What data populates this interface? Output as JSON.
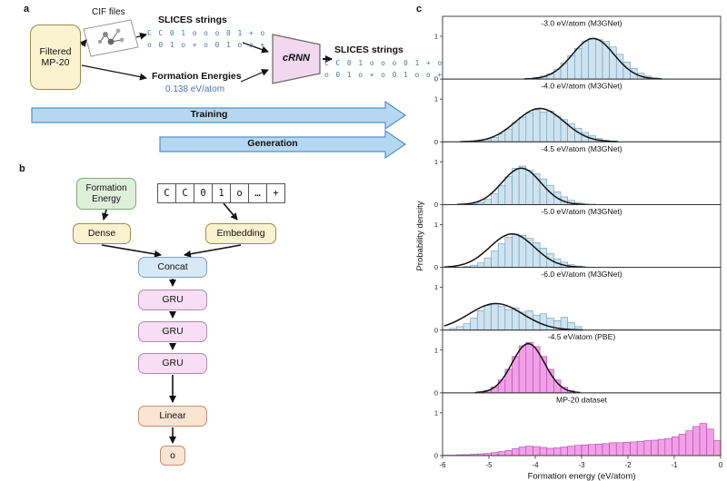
{
  "colors": {
    "hist_blue_fill": "#cfe3ef",
    "hist_blue_edge": "#6699bb",
    "hist_magenta_fill": "#f2a0e6",
    "hist_magenta_edge": "#b040b0",
    "arrow_blue_fill": "#b5d8f2",
    "arrow_blue_border": "#5590c5",
    "crnn_pink": "#f2d8ee",
    "code_blue": "#4878a8"
  },
  "figure": {
    "panel_a": {
      "label": "a",
      "filtered_box": "Filtered MP-20",
      "cif_label": "CIF files",
      "slices_title_1": "SLICES strings",
      "slices_line1": "C C 0 1 o o o 0 1 + o",
      "slices_line2": "o 0 1 o + o 0 1 o o +",
      "formation_label": "Formation Energies",
      "formation_value": "0.138 eV/atom",
      "crnn_label": "cRNN",
      "slices_title_2": "SLICES strings",
      "out_line1": "C C 0 1 o o o 0 1 + o",
      "out_line2": "o 0 1 o + o 0 1 o o +",
      "training_label": "Training",
      "generation_label": "Generation"
    },
    "panel_b": {
      "label": "b",
      "formation_energy": "Formation Energy",
      "tokens": [
        "C",
        "C",
        "0",
        "1",
        "o",
        "…",
        "+"
      ],
      "dense": "Dense",
      "embedding": "Embedding",
      "concat": "Concat",
      "gru": "GRU",
      "linear": "Linear",
      "output": "o"
    },
    "panel_c": {
      "label": "c"
    }
  },
  "chart_data": {
    "type": "bar",
    "note": "stack of 7 histograms (probability density vs formation energy), gaussian fit curves on top 6",
    "xlabel": "Formation energy (eV/atom)",
    "ylabel": "Probability density",
    "xlim": [
      -6,
      0
    ],
    "yticks": [
      0,
      1
    ],
    "subplots": [
      {
        "title": "-3.0 eV/atom (M3GNet)",
        "fill": "#cfe3ef",
        "edge": "#6699bb",
        "bars": {
          "start": -4.2,
          "binwidth": 0.15,
          "heights": [
            0.02,
            0.04,
            0.07,
            0.12,
            0.22,
            0.38,
            0.55,
            0.72,
            0.88,
            0.95,
            0.92,
            0.88,
            0.75,
            0.58,
            0.4,
            0.25,
            0.14,
            0.07,
            0.03,
            0.01
          ]
        },
        "curve": {
          "mean": -2.75,
          "sigma": 0.45,
          "amp": 0.95
        }
      },
      {
        "title": "-4.0 eV/atom (M3GNet)",
        "fill": "#cfe3ef",
        "edge": "#6699bb",
        "bars": {
          "start": -5.25,
          "binwidth": 0.15,
          "heights": [
            0.02,
            0.05,
            0.1,
            0.18,
            0.3,
            0.45,
            0.58,
            0.68,
            0.75,
            0.7,
            0.72,
            0.6,
            0.52,
            0.42,
            0.32,
            0.22,
            0.14,
            0.08,
            0.04,
            0.02
          ]
        },
        "curve": {
          "mean": -3.9,
          "sigma": 0.52,
          "amp": 0.78
        }
      },
      {
        "title": "-4.5 eV/atom (M3GNet)",
        "fill": "#cfe3ef",
        "edge": "#6699bb",
        "bars": {
          "start": -5.4,
          "binwidth": 0.15,
          "heights": [
            0.02,
            0.05,
            0.12,
            0.25,
            0.45,
            0.65,
            0.85,
            0.9,
            0.8,
            0.72,
            0.6,
            0.45,
            0.3,
            0.18,
            0.1,
            0.05,
            0.02,
            0.01
          ]
        },
        "curve": {
          "mean": -4.3,
          "sigma": 0.42,
          "amp": 0.85
        }
      },
      {
        "title": "-5.0 eV/atom (M3GNet)",
        "fill": "#cfe3ef",
        "edge": "#6699bb",
        "bars": {
          "start": -5.55,
          "binwidth": 0.15,
          "heights": [
            0.02,
            0.05,
            0.1,
            0.22,
            0.38,
            0.55,
            0.7,
            0.78,
            0.75,
            0.68,
            0.58,
            0.45,
            0.32,
            0.2,
            0.12,
            0.06,
            0.03,
            0.01
          ]
        },
        "curve": {
          "mean": -4.5,
          "sigma": 0.48,
          "amp": 0.78
        }
      },
      {
        "title": "-6.0 eV/atom (M3GNet)",
        "fill": "#cfe3ef",
        "edge": "#6699bb",
        "bars": {
          "start": -5.85,
          "binwidth": 0.15,
          "heights": [
            0.04,
            0.08,
            0.15,
            0.28,
            0.45,
            0.58,
            0.62,
            0.55,
            0.48,
            0.52,
            0.42,
            0.45,
            0.35,
            0.38,
            0.28,
            0.22,
            0.3,
            0.18,
            0.08
          ]
        },
        "curve": {
          "mean": -4.85,
          "sigma": 0.58,
          "amp": 0.62
        }
      },
      {
        "title": "-4.5 eV/atom (PBE)",
        "fill": "#f2a0e6",
        "edge": "#b040b0",
        "bars": {
          "start": -5.25,
          "binwidth": 0.15,
          "heights": [
            0.03,
            0.06,
            0.14,
            0.3,
            0.55,
            0.85,
            1.1,
            1.18,
            1.08,
            0.85,
            0.55,
            0.3,
            0.13,
            0.05
          ]
        },
        "curve": {
          "mean": -4.15,
          "sigma": 0.35,
          "amp": 1.15
        }
      },
      {
        "title": "MP-20 dataset",
        "fill": "#f2a0e6",
        "edge": "#b040b0",
        "bars": {
          "start": -6.0,
          "binwidth": 0.15,
          "heights": [
            0.01,
            0.01,
            0.02,
            0.02,
            0.03,
            0.04,
            0.05,
            0.07,
            0.09,
            0.12,
            0.16,
            0.2,
            0.22,
            0.21,
            0.19,
            0.17,
            0.18,
            0.2,
            0.22,
            0.24,
            0.25,
            0.26,
            0.27,
            0.28,
            0.3,
            0.3,
            0.31,
            0.32,
            0.33,
            0.35,
            0.36,
            0.38,
            0.4,
            0.44,
            0.5,
            0.58,
            0.68,
            0.75,
            0.62,
            0.35
          ]
        },
        "curve": null
      }
    ]
  }
}
